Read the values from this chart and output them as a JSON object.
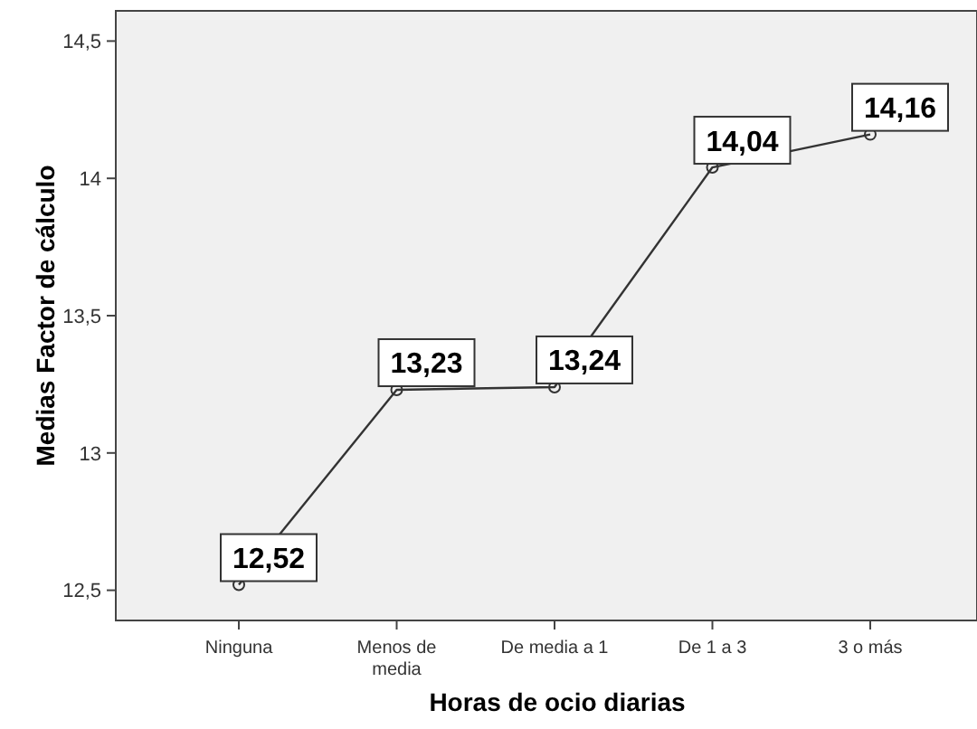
{
  "chart_data": {
    "type": "line",
    "xlabel": "Horas de ocio diarias",
    "ylabel": "Medias Factor de cálculo",
    "categories": [
      "Ninguna",
      "Menos de media",
      "De media a 1",
      "De 1 a 3",
      "3 o más"
    ],
    "values": [
      12.52,
      13.23,
      13.24,
      14.04,
      14.16
    ],
    "value_labels": [
      "12,52",
      "13,23",
      "13,24",
      "14,04",
      "14,16"
    ],
    "color": "#333333",
    "marker": "circle",
    "line_style": "solid",
    "grid": false,
    "ylim": [
      12.39,
      14.61
    ],
    "yticks": [
      {
        "value": 12.5,
        "label": "12,5"
      },
      {
        "value": 13,
        "label": "13"
      },
      {
        "value": 13.5,
        "label": "13,5"
      },
      {
        "value": 14,
        "label": "14"
      },
      {
        "value": 14.5,
        "label": "14,5"
      }
    ]
  }
}
